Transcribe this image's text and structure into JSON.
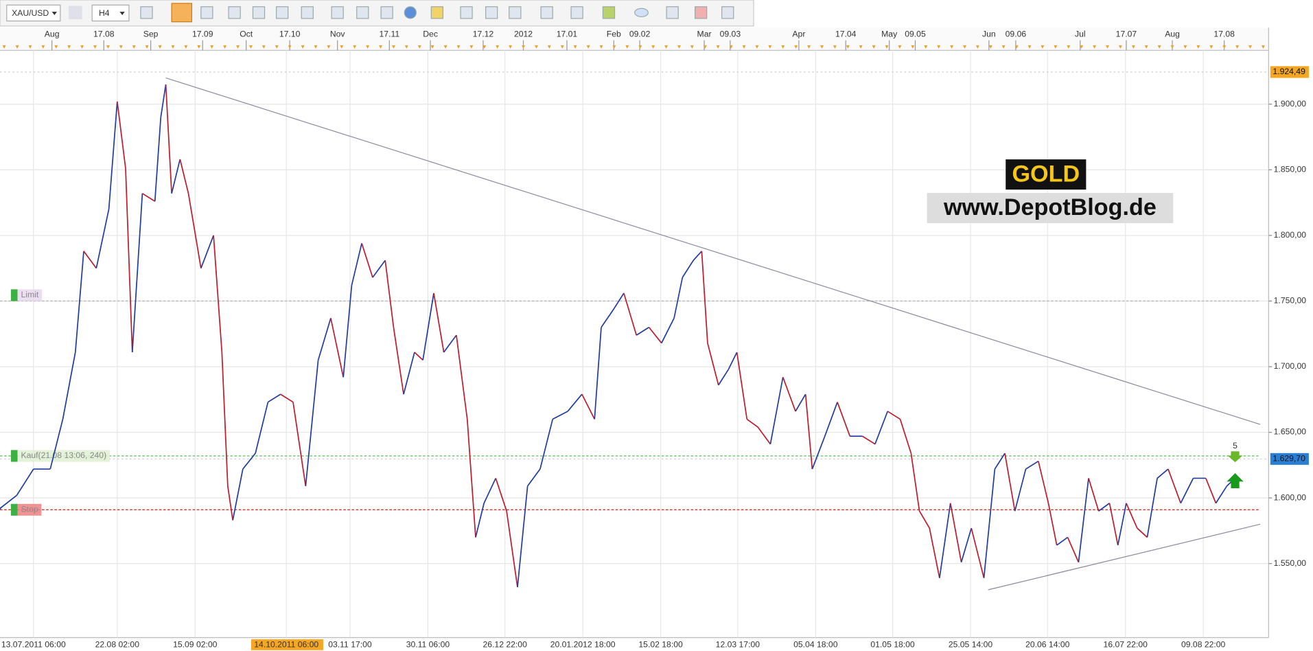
{
  "toolbar": {
    "symbol": "XAU/USD",
    "timeframe": "H4"
  },
  "chart_data": {
    "type": "line",
    "up_color": "#1f3c9e",
    "down_color": "#c01a2c",
    "x": [
      0,
      20,
      40,
      60,
      75,
      90,
      100,
      115,
      130,
      140,
      150,
      158,
      170,
      185,
      192,
      198,
      205,
      215,
      225,
      240,
      255,
      265,
      272,
      278,
      290,
      305,
      320,
      335,
      350,
      365,
      380,
      395,
      410,
      420,
      432,
      445,
      460,
      470,
      482,
      495,
      505,
      518,
      530,
      545,
      558,
      568,
      578,
      592,
      605,
      618,
      630,
      645,
      660,
      678,
      695,
      710,
      718,
      732,
      745,
      760,
      775,
      790,
      805,
      815,
      828,
      838,
      845,
      858,
      870,
      880,
      892,
      905,
      920,
      935,
      950,
      962,
      970,
      985,
      1000,
      1015,
      1030,
      1045,
      1060,
      1075,
      1088,
      1098,
      1110,
      1122,
      1135,
      1148,
      1160,
      1175,
      1188,
      1200,
      1212,
      1225,
      1240,
      1252,
      1262,
      1275,
      1288,
      1300,
      1312,
      1325,
      1335,
      1345,
      1358,
      1370,
      1382,
      1395,
      1410,
      1425,
      1440,
      1452,
      1465,
      1475
    ],
    "values": [
      1592,
      1602,
      1622,
      1622,
      1660,
      1711,
      1788,
      1775,
      1820,
      1902,
      1851,
      1711,
      1832,
      1826,
      1890,
      1915,
      1832,
      1858,
      1832,
      1775,
      1800,
      1711,
      1609,
      1583,
      1622,
      1634,
      1673,
      1679,
      1673,
      1609,
      1705,
      1737,
      1692,
      1762,
      1794,
      1768,
      1781,
      1730,
      1679,
      1711,
      1705,
      1756,
      1711,
      1724,
      1660,
      1570,
      1596,
      1615,
      1590,
      1532,
      1609,
      1622,
      1660,
      1666,
      1679,
      1660,
      1730,
      1743,
      1756,
      1724,
      1730,
      1718,
      1737,
      1768,
      1781,
      1788,
      1718,
      1686,
      1698,
      1711,
      1660,
      1654,
      1641,
      1692,
      1666,
      1679,
      1622,
      1647,
      1673,
      1647,
      1647,
      1641,
      1666,
      1660,
      1634,
      1590,
      1577,
      1539,
      1596,
      1551,
      1577,
      1539,
      1622,
      1634,
      1590,
      1622,
      1628,
      1596,
      1564,
      1570,
      1551,
      1615,
      1590,
      1596,
      1564,
      1596,
      1577,
      1570,
      1615,
      1622,
      1596,
      1615,
      1615,
      1596,
      1609,
      1615
    ],
    "xlim": [
      0,
      1505
    ],
    "ylim": [
      1500,
      1957
    ],
    "yticks": [
      {
        "value": 1550,
        "label": "1.550,00"
      },
      {
        "value": 1600,
        "label": "1.600,00"
      },
      {
        "value": 1650,
        "label": "1.650,00"
      },
      {
        "value": 1700,
        "label": "1.700,00"
      },
      {
        "value": 1750,
        "label": "1.750,00"
      },
      {
        "value": 1800,
        "label": "1.800,00"
      },
      {
        "value": 1850,
        "label": "1.850,00"
      },
      {
        "value": 1900,
        "label": "1.900,00"
      }
    ],
    "grid": true,
    "top_ticks": [
      {
        "value": 62,
        "label": "Aug"
      },
      {
        "value": 124,
        "label": "17.08"
      },
      {
        "value": 180,
        "label": "Sep"
      },
      {
        "value": 242,
        "label": "17.09"
      },
      {
        "value": 294,
        "label": "Oct"
      },
      {
        "value": 346,
        "label": "17.10"
      },
      {
        "value": 403,
        "label": "Nov"
      },
      {
        "value": 465,
        "label": "17.11"
      },
      {
        "value": 514,
        "label": "Dec"
      },
      {
        "value": 577,
        "label": "17.12"
      },
      {
        "value": 625,
        "label": "2012"
      },
      {
        "value": 677,
        "label": "17.01"
      },
      {
        "value": 733,
        "label": "Feb"
      },
      {
        "value": 764,
        "label": "09.02"
      },
      {
        "value": 841,
        "label": "Mar"
      },
      {
        "value": 872,
        "label": "09.03"
      },
      {
        "value": 954,
        "label": "Apr"
      },
      {
        "value": 1010,
        "label": "17.04"
      },
      {
        "value": 1062,
        "label": "May"
      },
      {
        "value": 1093,
        "label": "09.05"
      },
      {
        "value": 1181,
        "label": "Jun"
      },
      {
        "value": 1213,
        "label": "09.06"
      },
      {
        "value": 1290,
        "label": "Jul"
      },
      {
        "value": 1345,
        "label": "17.07"
      },
      {
        "value": 1400,
        "label": "Aug"
      },
      {
        "value": 1462,
        "label": "17.08"
      }
    ],
    "bottom_ticks": [
      {
        "value": 40,
        "label": "13.07.2011 06:00"
      },
      {
        "value": 140,
        "label": "22.08 02:00"
      },
      {
        "value": 233,
        "label": "15.09 02:00"
      },
      {
        "value": 342,
        "label": "14.10.2011 06:00"
      },
      {
        "value": 418,
        "label": "03.11 17:00"
      },
      {
        "value": 511,
        "label": "30.11 06:00"
      },
      {
        "value": 603,
        "label": "26.12 22:00"
      },
      {
        "value": 696,
        "label": "20.01.2012 18:00"
      },
      {
        "value": 789,
        "label": "15.02 18:00"
      },
      {
        "value": 881,
        "label": "12.03 17:00"
      },
      {
        "value": 974,
        "label": "05.04 18:00"
      },
      {
        "value": 1066,
        "label": "01.05 18:00"
      },
      {
        "value": 1159,
        "label": "25.05 14:00"
      },
      {
        "value": 1251,
        "label": "20.06 14:00"
      },
      {
        "value": 1344,
        "label": "16.07 22:00"
      },
      {
        "value": 1437,
        "label": "09.08 22:00"
      }
    ],
    "highlight_tick": 3,
    "price_labels": [
      {
        "value": 1924.49,
        "label": "1.924,49",
        "color": "#f5a623"
      },
      {
        "value": 1629.7,
        "label": "1.629,70",
        "color": "#2a7fd4"
      }
    ],
    "levels": [
      {
        "name": "Limit",
        "value": 1750,
        "color": "#bbbbbb",
        "box": "#e8d8ef"
      },
      {
        "name": "Kauf(21.08 13:06, 240)",
        "value": 1632,
        "color": "#6cc26c",
        "box": "#dff0d4"
      },
      {
        "name": "Stop",
        "value": 1591,
        "color": "#e03030",
        "box": "#f08080"
      }
    ],
    "trendlines": [
      {
        "x": [
          198,
          1505
        ],
        "y": [
          1920,
          1656
        ]
      },
      {
        "x": [
          1180,
          1505
        ],
        "y": [
          1530,
          1580
        ]
      }
    ],
    "annotations": {
      "gold": "GOLD",
      "site": "www.DepotBlog.de",
      "marker": "5"
    }
  }
}
